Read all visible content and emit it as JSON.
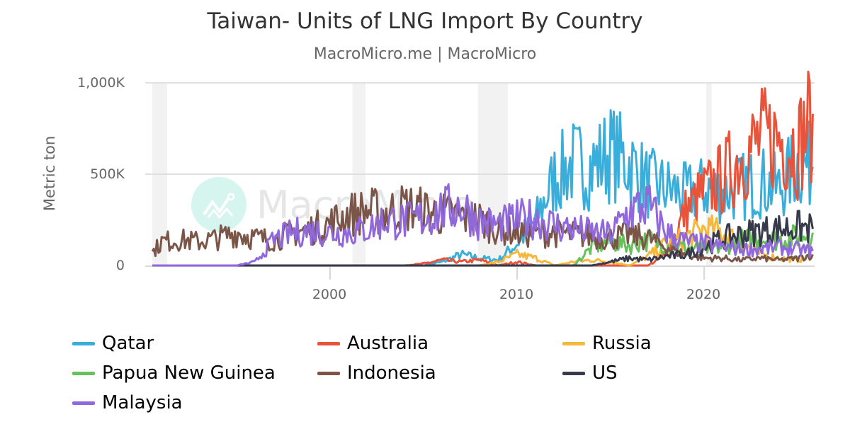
{
  "header": {
    "title": "Taiwan- Units of LNG Import By Country",
    "subtitle": "MacroMicro.me | MacroMicro"
  },
  "watermark": {
    "text": "MacroMicro",
    "icon": "chart-line-logo-icon"
  },
  "axes": {
    "ylabel": "Metric ton",
    "yticks": [
      {
        "label": "1,000K",
        "value": 1000000
      },
      {
        "label": "500K",
        "value": 500000
      },
      {
        "label": "0",
        "value": 0
      }
    ],
    "xticks": [
      {
        "label": "2000",
        "value": 2000
      },
      {
        "label": "2010",
        "value": 2010
      },
      {
        "label": "2020",
        "value": 2020
      }
    ]
  },
  "legend": {
    "items": [
      {
        "label": "Qatar",
        "color": "#3aaedb"
      },
      {
        "label": "Australia",
        "color": "#e8533a"
      },
      {
        "label": "Russia",
        "color": "#f5b83d"
      },
      {
        "label": "Papua New Guinea",
        "color": "#66c15a"
      },
      {
        "label": "Indonesia",
        "color": "#7a5548"
      },
      {
        "label": "US",
        "color": "#363a4b"
      },
      {
        "label": "Malaysia",
        "color": "#9068dc"
      }
    ]
  },
  "chart_data": {
    "type": "line",
    "title": "Taiwan- Units of LNG Import By Country",
    "subtitle": "MacroMicro.me | MacroMicro",
    "xlabel": "",
    "ylabel": "Metric ton",
    "xlim": [
      1990.5,
      2025.9
    ],
    "ylim": [
      0,
      1000000
    ],
    "grid": {
      "y": true,
      "x": false
    },
    "legend_position": "bottom",
    "recession_bands": [
      [
        1990.5,
        1991.3
      ],
      [
        2001.2,
        2001.9
      ],
      [
        2007.9,
        2009.5
      ],
      [
        2020.1,
        2020.4
      ]
    ],
    "x": [
      1990.5,
      1991,
      1992,
      1993,
      1994,
      1995,
      1996,
      1997,
      1998,
      1999,
      2000,
      2001,
      2002,
      2003,
      2004,
      2005,
      2006,
      2007,
      2008,
      2009,
      2010,
      2011,
      2012,
      2013,
      2014,
      2015,
      2016,
      2017,
      2018,
      2019,
      2020,
      2021,
      2022,
      2023,
      2024,
      2025,
      2025.8
    ],
    "series": [
      {
        "name": "Qatar",
        "color": "#3aaedb",
        "values": [
          0,
          0,
          0,
          0,
          0,
          0,
          0,
          0,
          0,
          0,
          0,
          0,
          0,
          0,
          0,
          0,
          20000,
          60000,
          40000,
          30000,
          120000,
          250000,
          480000,
          560000,
          540000,
          620000,
          560000,
          450000,
          420000,
          390000,
          420000,
          400000,
          430000,
          460000,
          420000,
          560000,
          540000
        ]
      },
      {
        "name": "Australia",
        "color": "#e8533a",
        "values": [
          0,
          0,
          0,
          0,
          0,
          0,
          0,
          0,
          0,
          0,
          0,
          0,
          0,
          0,
          0,
          10000,
          30000,
          20000,
          30000,
          0,
          20000,
          0,
          0,
          0,
          0,
          0,
          0,
          0,
          60000,
          300000,
          400000,
          480000,
          600000,
          680000,
          700000,
          650000,
          830000
        ]
      },
      {
        "name": "Russia",
        "color": "#f5b83d",
        "values": [
          0,
          0,
          0,
          0,
          0,
          0,
          0,
          0,
          0,
          0,
          0,
          0,
          0,
          0,
          0,
          0,
          0,
          0,
          0,
          20000,
          60000,
          40000,
          0,
          20000,
          30000,
          20000,
          0,
          50000,
          120000,
          150000,
          200000,
          180000,
          120000,
          60000,
          40000,
          30000,
          50000
        ]
      },
      {
        "name": "Papua New Guinea",
        "color": "#66c15a",
        "values": [
          0,
          0,
          0,
          0,
          0,
          0,
          0,
          0,
          0,
          0,
          0,
          0,
          0,
          0,
          0,
          0,
          0,
          0,
          0,
          0,
          0,
          0,
          0,
          0,
          100000,
          130000,
          110000,
          140000,
          110000,
          100000,
          90000,
          100000,
          140000,
          150000,
          140000,
          160000,
          180000
        ]
      },
      {
        "name": "Indonesia",
        "color": "#7a5548",
        "values": [
          70000,
          130000,
          140000,
          130000,
          150000,
          180000,
          150000,
          140000,
          180000,
          200000,
          230000,
          280000,
          300000,
          290000,
          320000,
          300000,
          280000,
          270000,
          250000,
          200000,
          180000,
          170000,
          180000,
          170000,
          160000,
          150000,
          170000,
          150000,
          100000,
          60000,
          40000,
          40000,
          30000,
          40000,
          30000,
          40000,
          60000
        ]
      },
      {
        "name": "US",
        "color": "#363a4b",
        "values": [
          0,
          0,
          0,
          0,
          0,
          0,
          0,
          0,
          0,
          0,
          0,
          0,
          0,
          0,
          0,
          0,
          0,
          0,
          0,
          0,
          0,
          0,
          0,
          0,
          0,
          20000,
          40000,
          30000,
          50000,
          60000,
          100000,
          150000,
          170000,
          190000,
          200000,
          210000,
          200000
        ]
      },
      {
        "name": "Malaysia",
        "color": "#9068dc",
        "values": [
          0,
          0,
          0,
          0,
          0,
          0,
          20000,
          140000,
          180000,
          190000,
          180000,
          180000,
          200000,
          250000,
          240000,
          260000,
          300000,
          330000,
          240000,
          220000,
          250000,
          260000,
          220000,
          200000,
          180000,
          170000,
          300000,
          330000,
          180000,
          130000,
          120000,
          100000,
          90000,
          90000,
          100000,
          90000,
          80000
        ]
      }
    ]
  }
}
